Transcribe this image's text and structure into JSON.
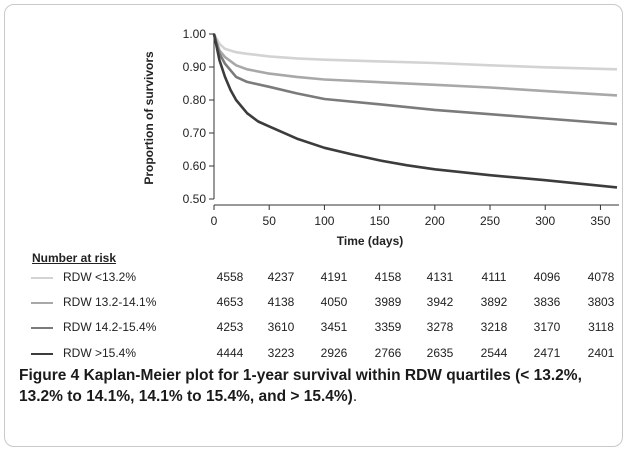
{
  "chart_data": {
    "type": "line",
    "title": "",
    "xlabel": "Time (days)",
    "ylabel": "Proportion of survivors",
    "xlim": [
      0,
      365
    ],
    "ylim": [
      0.5,
      1.0
    ],
    "x_ticks": [
      0,
      50,
      100,
      150,
      200,
      250,
      300,
      350
    ],
    "y_ticks": [
      "0.50",
      "0.60",
      "0.70",
      "0.80",
      "0.90",
      "1.00"
    ],
    "grid": false,
    "series": [
      {
        "name": "RDW <13.2%",
        "color": "#d3d3d3",
        "points": [
          [
            0,
            1.0
          ],
          [
            5,
            0.97
          ],
          [
            10,
            0.955
          ],
          [
            20,
            0.945
          ],
          [
            30,
            0.94
          ],
          [
            50,
            0.932
          ],
          [
            75,
            0.926
          ],
          [
            100,
            0.922
          ],
          [
            150,
            0.917
          ],
          [
            200,
            0.912
          ],
          [
            250,
            0.905
          ],
          [
            300,
            0.899
          ],
          [
            365,
            0.893
          ]
        ]
      },
      {
        "name": "RDW 13.2-14.1%",
        "color": "#a8a8a8",
        "points": [
          [
            0,
            1.0
          ],
          [
            5,
            0.95
          ],
          [
            10,
            0.93
          ],
          [
            20,
            0.905
          ],
          [
            30,
            0.893
          ],
          [
            50,
            0.88
          ],
          [
            75,
            0.87
          ],
          [
            100,
            0.862
          ],
          [
            150,
            0.854
          ],
          [
            200,
            0.846
          ],
          [
            250,
            0.838
          ],
          [
            300,
            0.827
          ],
          [
            365,
            0.814
          ]
        ]
      },
      {
        "name": "RDW 14.2-15.4%",
        "color": "#7b7b7b",
        "points": [
          [
            0,
            1.0
          ],
          [
            5,
            0.94
          ],
          [
            10,
            0.91
          ],
          [
            20,
            0.87
          ],
          [
            30,
            0.855
          ],
          [
            50,
            0.84
          ],
          [
            75,
            0.82
          ],
          [
            100,
            0.803
          ],
          [
            150,
            0.787
          ],
          [
            200,
            0.77
          ],
          [
            250,
            0.757
          ],
          [
            300,
            0.744
          ],
          [
            365,
            0.727
          ]
        ]
      },
      {
        "name": "RDW >15.4%",
        "color": "#3c3c3c",
        "points": [
          [
            0,
            1.0
          ],
          [
            5,
            0.92
          ],
          [
            10,
            0.87
          ],
          [
            15,
            0.83
          ],
          [
            20,
            0.8
          ],
          [
            30,
            0.76
          ],
          [
            40,
            0.735
          ],
          [
            50,
            0.72
          ],
          [
            75,
            0.683
          ],
          [
            100,
            0.655
          ],
          [
            125,
            0.635
          ],
          [
            150,
            0.617
          ],
          [
            175,
            0.602
          ],
          [
            200,
            0.59
          ],
          [
            250,
            0.572
          ],
          [
            300,
            0.557
          ],
          [
            365,
            0.535
          ]
        ]
      }
    ]
  },
  "risk_table": {
    "title": "Number at risk",
    "rows": [
      {
        "label": "RDW <13.2%",
        "color": "#d3d3d3",
        "counts": [
          "4558",
          "4237",
          "4191",
          "4158",
          "4131",
          "4111",
          "4096",
          "4078"
        ]
      },
      {
        "label": "RDW 13.2-14.1%",
        "color": "#a8a8a8",
        "counts": [
          "4653",
          "4138",
          "4050",
          "3989",
          "3942",
          "3892",
          "3836",
          "3803"
        ]
      },
      {
        "label": "RDW 14.2-15.4%",
        "color": "#7b7b7b",
        "counts": [
          "4253",
          "3610",
          "3451",
          "3359",
          "3278",
          "3218",
          "3170",
          "3118"
        ]
      },
      {
        "label": "RDW >15.4%",
        "color": "#3c3c3c",
        "counts": [
          "4444",
          "3223",
          "2926",
          "2766",
          "2635",
          "2544",
          "2471",
          "2401"
        ]
      }
    ]
  },
  "caption": {
    "head": "Figure 4",
    "body": "Kaplan-Meier plot for 1-year survival within RDW quartiles (< 13.2%, 13.2% to 14.1%, 14.1% to 15.4%, and > 15.4%)",
    "end": "."
  }
}
